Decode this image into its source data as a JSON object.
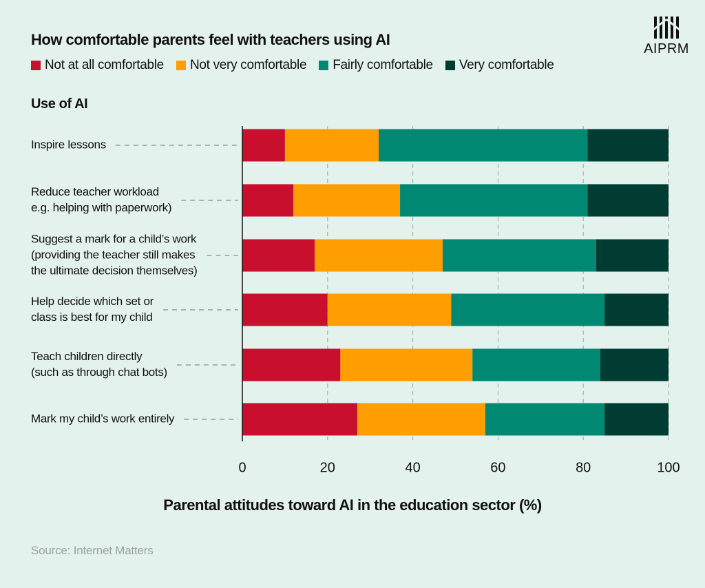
{
  "title": "How comfortable parents feel with teachers using AI",
  "section_title": "Use of AI",
  "logo_text": "AIPRM",
  "source": "Source: Internet Matters",
  "colors": {
    "not_at_all": "#c8102e",
    "not_very": "#ff9e00",
    "fairly": "#008873",
    "very": "#003c32"
  },
  "chart_data": {
    "type": "bar",
    "orientation": "horizontal",
    "stacked": true,
    "title": "How comfortable parents feel with teachers using AI",
    "xlabel": "Parental attitudes toward AI in the education sector (%)",
    "ylabel": "Use of AI",
    "xlim": [
      0,
      100
    ],
    "xticks": [
      0,
      20,
      40,
      60,
      80,
      100
    ],
    "legend_position": "top-left",
    "categories": [
      [
        "Inspire lessons"
      ],
      [
        "Reduce teacher workload",
        "e.g. helping with paperwork)"
      ],
      [
        "Suggest a mark for a child’s work",
        "(providing the teacher still makes",
        "the ultimate decision themselves)"
      ],
      [
        "Help decide which set or",
        "class is best for my child"
      ],
      [
        "Teach children directly",
        "(such as through chat bots)"
      ],
      [
        "Mark my child’s work entirely"
      ]
    ],
    "series": [
      {
        "name": "Not at all comfortable",
        "color": "#c8102e",
        "values": [
          10,
          12,
          17,
          20,
          23,
          27
        ]
      },
      {
        "name": "Not very comfortable",
        "color": "#ff9e00",
        "values": [
          22,
          25,
          30,
          29,
          31,
          30
        ]
      },
      {
        "name": "Fairly comfortable",
        "color": "#008873",
        "values": [
          49,
          44,
          36,
          36,
          30,
          28
        ]
      },
      {
        "name": "Very comfortable",
        "color": "#003c32",
        "values": [
          19,
          19,
          17,
          15,
          16,
          15
        ]
      }
    ]
  }
}
